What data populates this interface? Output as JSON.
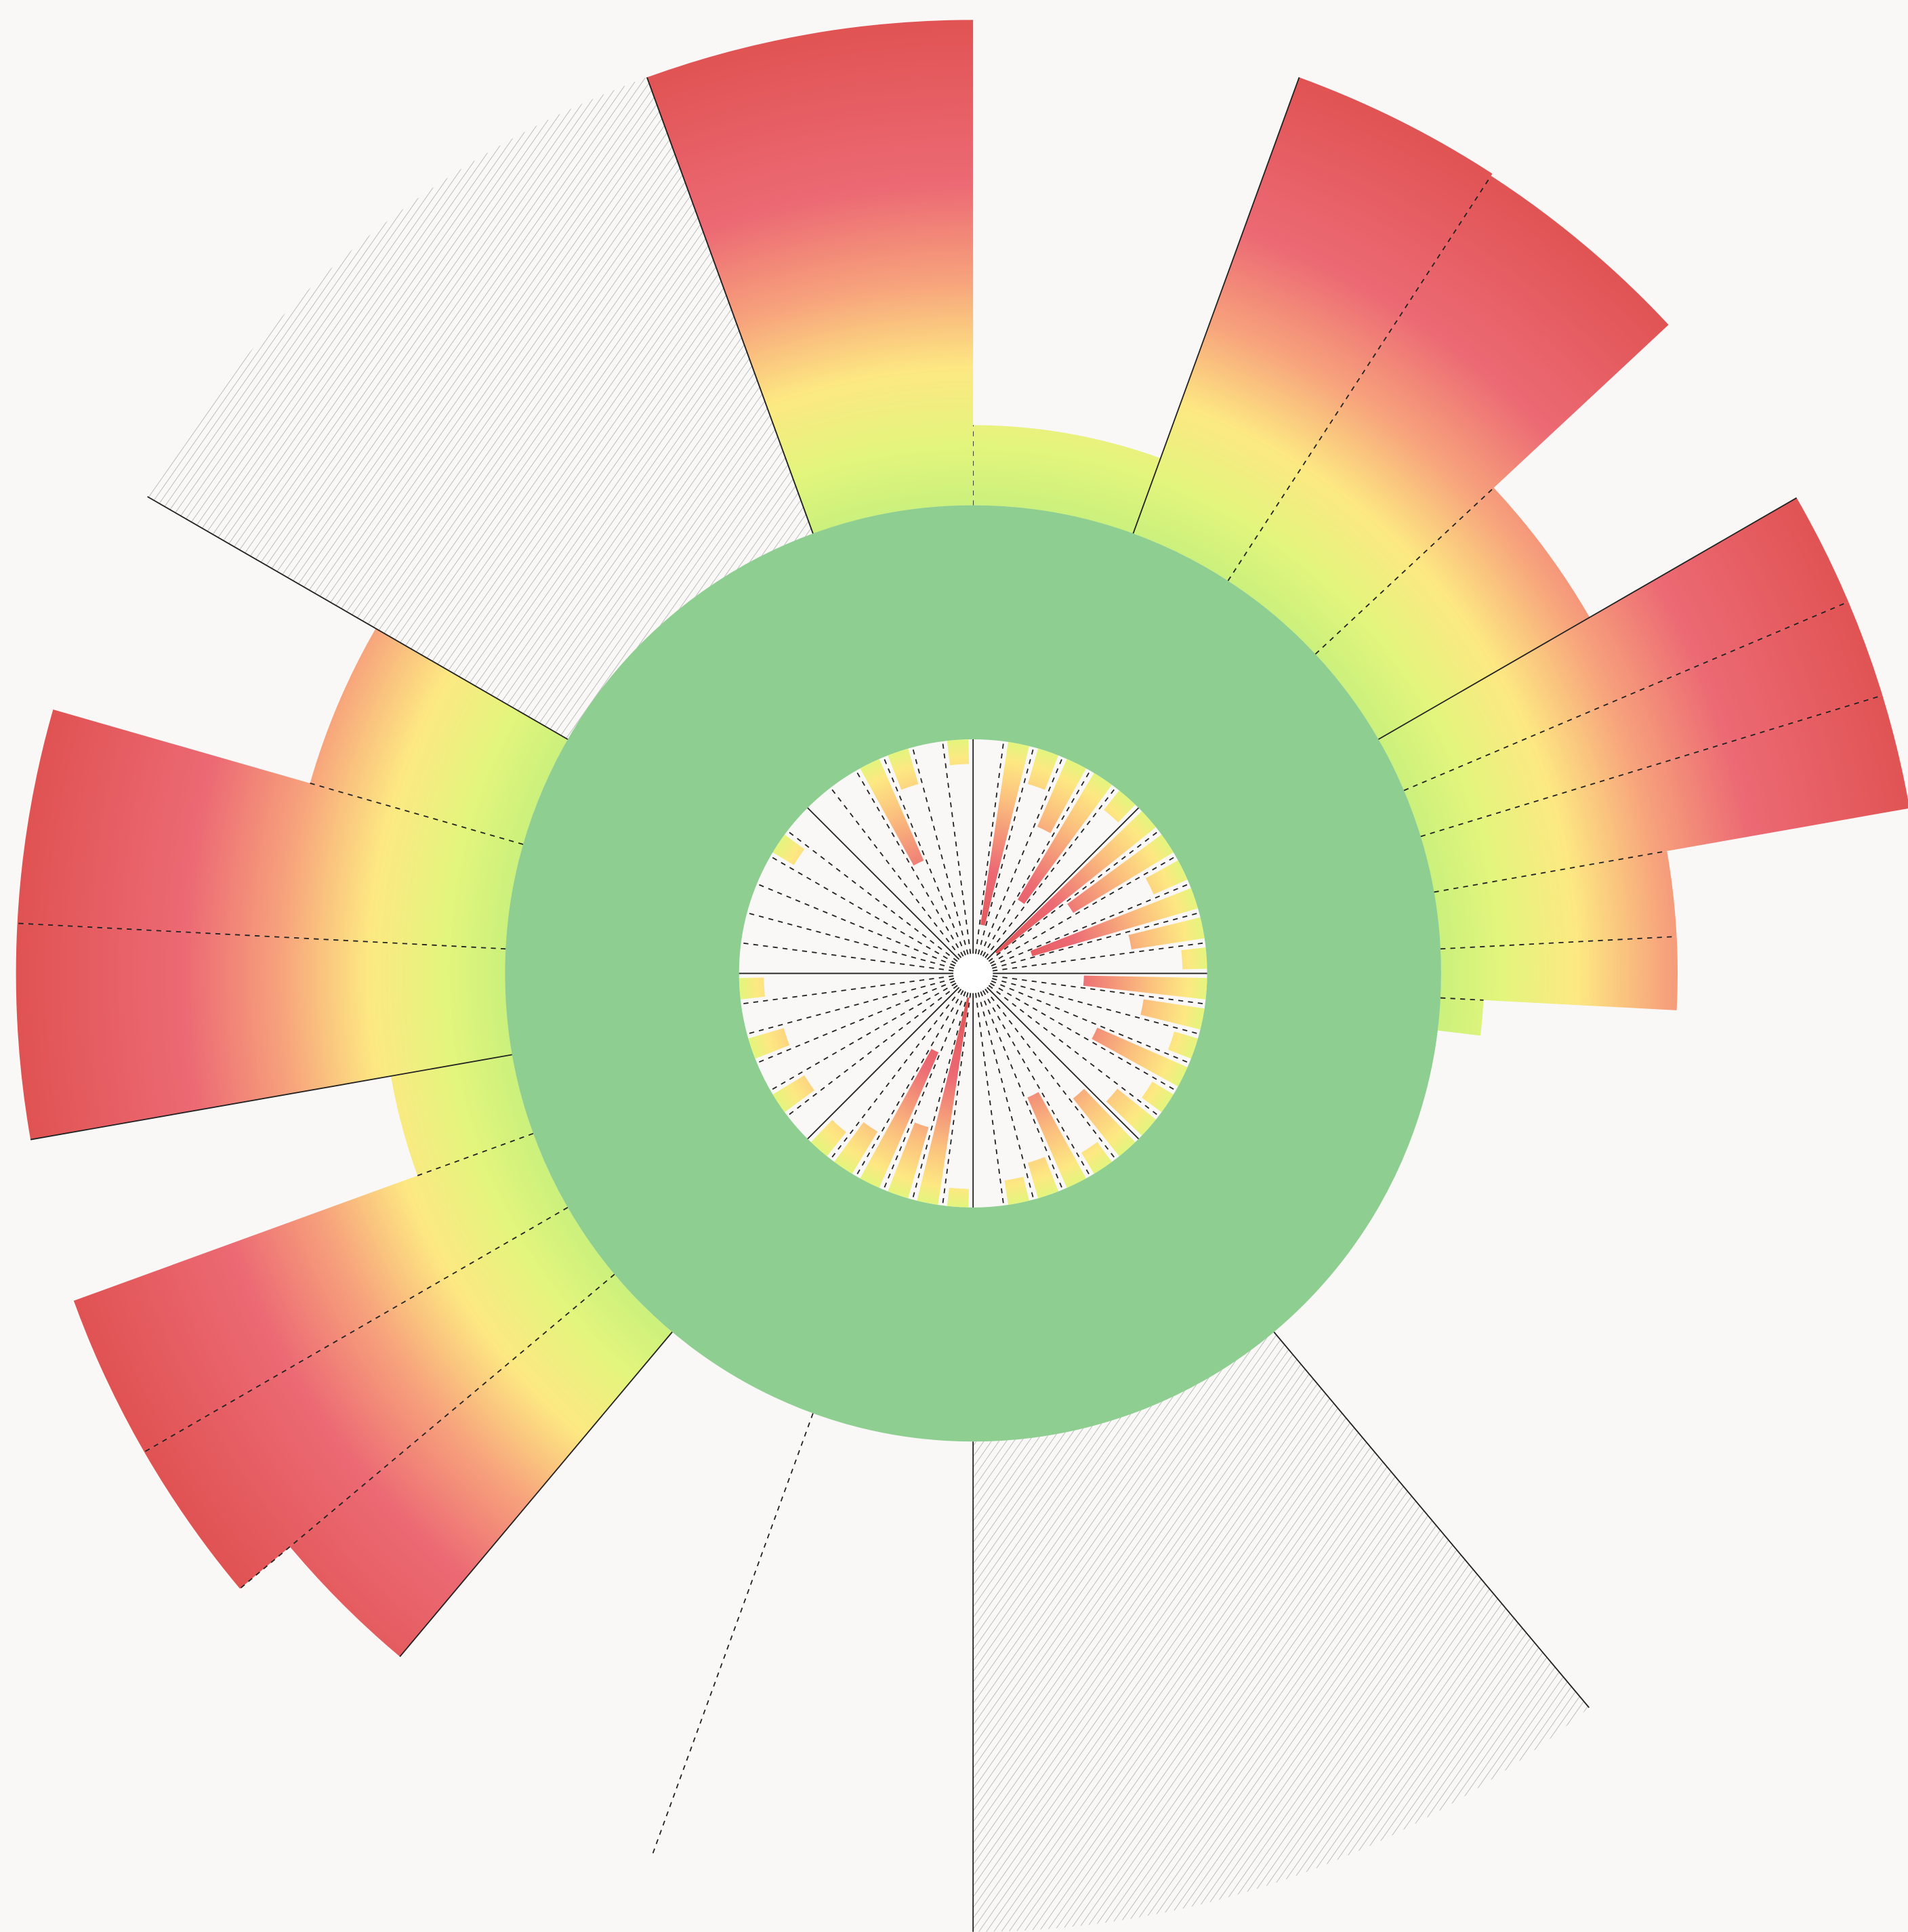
{
  "chart_data": {
    "type": "polar_bar",
    "rlim": [
      0,
      780
    ],
    "base": 380,
    "sectors": [
      {
        "start": 0,
        "end": 20,
        "value": 445,
        "edge": "dashed"
      },
      {
        "start": 20,
        "end": 33,
        "value": 774,
        "edge": "solid"
      },
      {
        "start": 33,
        "end": 47,
        "value": 772,
        "edge": "dashed"
      },
      {
        "start": 47,
        "end": 60,
        "value": 578,
        "edge": "dashed"
      },
      {
        "start": 60,
        "end": 67,
        "value": 772,
        "edge": "solid"
      },
      {
        "start": 67,
        "end": 73,
        "value": 772,
        "edge": "dashed"
      },
      {
        "start": 73,
        "end": 80,
        "value": 772,
        "edge": "dashed"
      },
      {
        "start": 80,
        "end": 87,
        "value": 572,
        "edge": "dashed"
      },
      {
        "start": 87,
        "end": 93,
        "value": 572,
        "edge": "dashed"
      },
      {
        "start": 93,
        "end": 97,
        "value": 415,
        "edge": "dashed"
      },
      {
        "start": 140,
        "end": 180,
        "value": 778,
        "edge": "solid",
        "fill": "hatch"
      },
      {
        "start": 200,
        "end": 220,
        "value": 760,
        "edge": "dashed",
        "fill": "none"
      },
      {
        "start": 220,
        "end": 230,
        "value": 724,
        "edge": "solid"
      },
      {
        "start": 230,
        "end": 240,
        "value": 777,
        "edge": "dashed"
      },
      {
        "start": 240,
        "end": 250,
        "value": 777,
        "edge": "dashed"
      },
      {
        "start": 250,
        "end": 260,
        "value": 480,
        "edge": "dashed"
      },
      {
        "start": 260,
        "end": 273,
        "value": 777,
        "edge": "solid"
      },
      {
        "start": 273,
        "end": 286,
        "value": 777,
        "edge": "dashed"
      },
      {
        "start": 286,
        "end": 300,
        "value": 560,
        "edge": "dashed"
      },
      {
        "start": 300,
        "end": 340,
        "value": 774,
        "edge": "solid",
        "fill": "hatch"
      },
      {
        "start": 340,
        "end": 360,
        "value": 774,
        "edge": "solid"
      }
    ],
    "inner_values": [
      0,
      150,
      30,
      60,
      120,
      20,
      165,
      95,
      30,
      140,
      60,
      20,
      100,
      50,
      20,
      80,
      20,
      40,
      60,
      20,
      80,
      30,
      20,
      0,
      15,
      170,
      60,
      120,
      40,
      25,
      0,
      30,
      0,
      30,
      0,
      20,
      0,
      0,
      0,
      0,
      20,
      0,
      0,
      0,
      90,
      30,
      0,
      20
    ]
  }
}
